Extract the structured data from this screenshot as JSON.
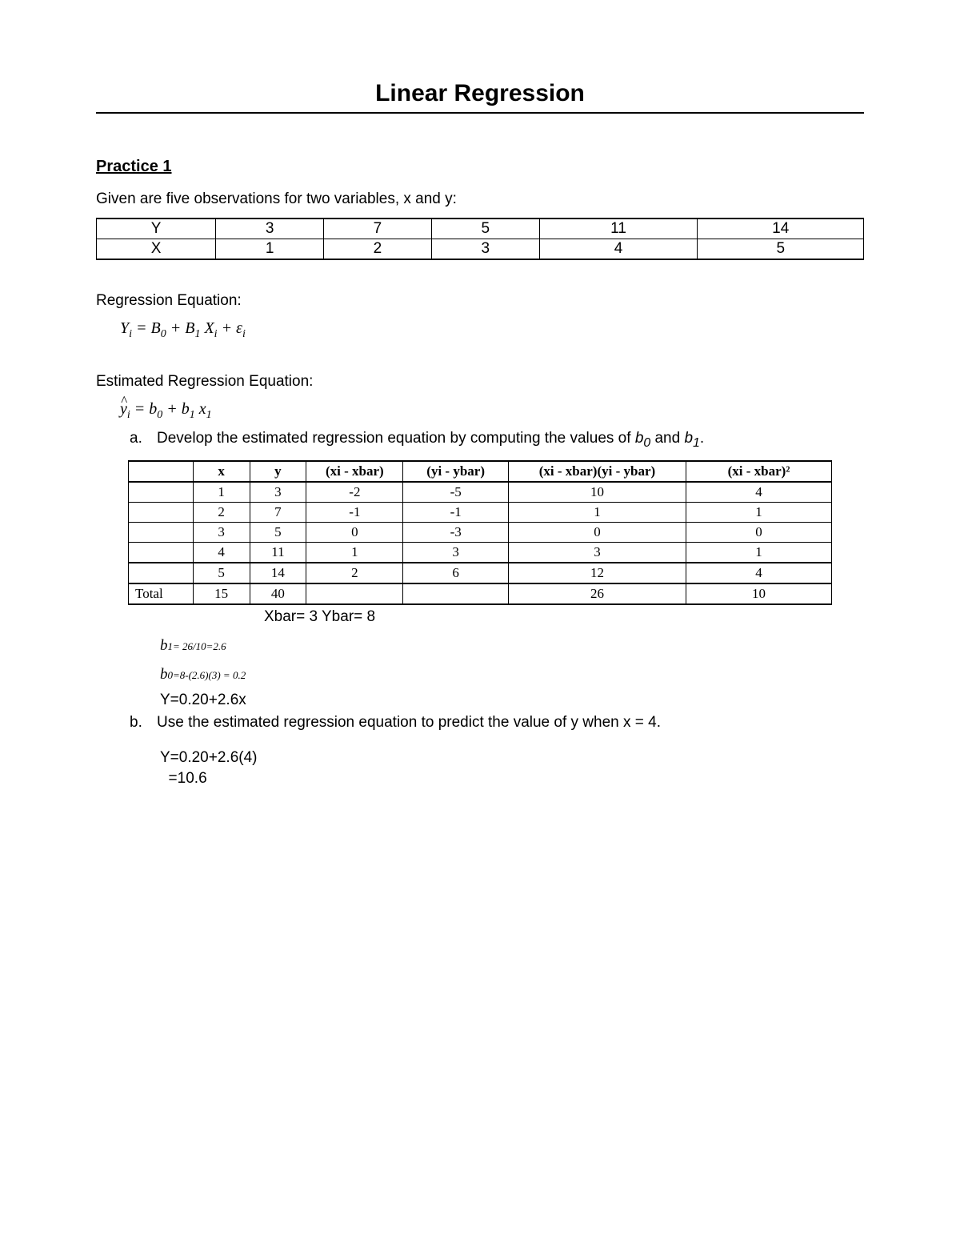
{
  "title": "Linear Regression",
  "section": "Practice 1",
  "intro": "Given are five observations for two variables, x and y:",
  "obs_table": {
    "row_labels": [
      "Y",
      "X"
    ],
    "rows": [
      [
        "3",
        "7",
        "5",
        "11",
        "14"
      ],
      [
        "1",
        "2",
        "3",
        "4",
        "5"
      ]
    ]
  },
  "reg_eq_label": "Regression Equation:",
  "est_reg_eq_label": "Estimated Regression Equation:",
  "item_a_marker": "a.",
  "item_a_text_1": "Develop the estimated regression equation by computing the values of ",
  "item_a_text_2": " and ",
  "item_a_text_3": ".",
  "b0_label": "b",
  "b0_sub": "0",
  "b1_label": "b",
  "b1_sub": "1",
  "calc_table": {
    "headers": [
      "",
      "x",
      "y",
      "(xi - xbar)",
      "(yi - ybar)",
      "(xi - xbar)(yi - ybar)",
      "(xi - xbar)²"
    ],
    "rows": [
      [
        "",
        "1",
        "3",
        "-2",
        "-5",
        "10",
        "4"
      ],
      [
        "",
        "2",
        "7",
        "-1",
        "-1",
        "1",
        "1"
      ],
      [
        "",
        "3",
        "5",
        "0",
        "-3",
        "0",
        "0"
      ],
      [
        "",
        "4",
        "11",
        "1",
        "3",
        "3",
        "1"
      ],
      [
        "",
        "5",
        "14",
        "2",
        "6",
        "12",
        "4"
      ]
    ],
    "total_row": [
      "Total",
      "15",
      "40",
      "",
      "",
      "26",
      "10"
    ]
  },
  "means_line": "Xbar= 3    Ybar= 8",
  "b1_calc_main": "b",
  "b1_calc_sub": "1= 26/10=2.6",
  "b0_calc_main": "b",
  "b0_calc_sub": "0=8-(2.6)(3) = 0.2",
  "result_eq": "Y=0.20+2.6x",
  "item_b_marker": "b.",
  "item_b_text": "Use the estimated regression equation to predict the value of y when x = 4.",
  "calc_line1": "Y=0.20+2.6(4)",
  "calc_line2": "  =10.6"
}
